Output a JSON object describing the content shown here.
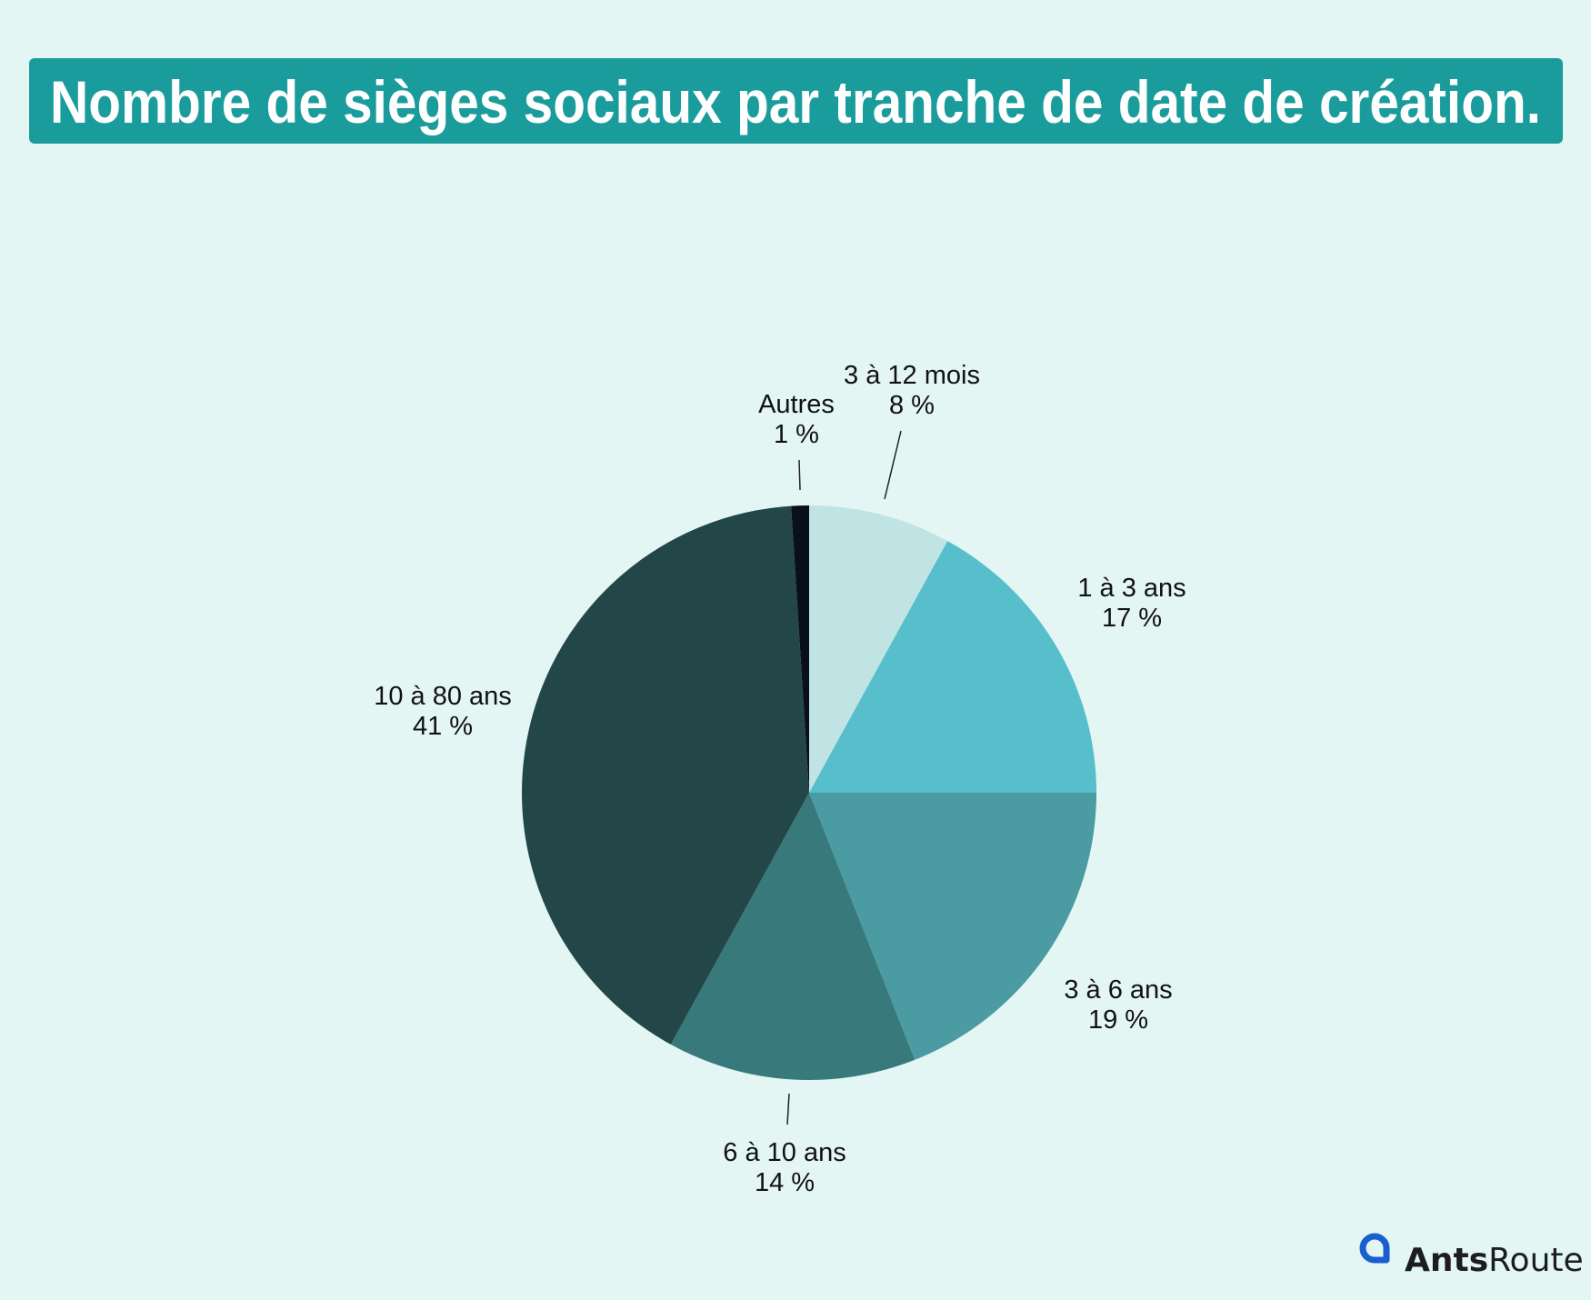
{
  "chart_data": {
    "type": "pie",
    "title": "Nombre de sièges sociaux par tranche de date de création.",
    "start": "top",
    "direction": "clockwise",
    "slices": [
      {
        "label": "3 à 12 mois",
        "value": 8,
        "value_label": "8 %",
        "color": "#c0e4e3"
      },
      {
        "label": "1 à 3 ans",
        "value": 17,
        "value_label": "17 %",
        "color": "#57bfcb"
      },
      {
        "label": "3 à 6 ans",
        "value": 19,
        "value_label": "19 %",
        "color": "#4a9ca2"
      },
      {
        "label": "6 à 10 ans",
        "value": 14,
        "value_label": "14 %",
        "color": "#387a7b"
      },
      {
        "label": "10 à 80 ans",
        "value": 41,
        "value_label": "41 %",
        "color": "#234649"
      },
      {
        "label": "Autres",
        "value": 1,
        "value_label": "1 %",
        "color": "#0a0f1e"
      }
    ]
  },
  "colors": {
    "background": "#e3f6f4",
    "title_banner": "#1a9c9c",
    "logo": "#1a5fd0"
  },
  "logo": {
    "bold": "Ants",
    "light": "Route"
  }
}
